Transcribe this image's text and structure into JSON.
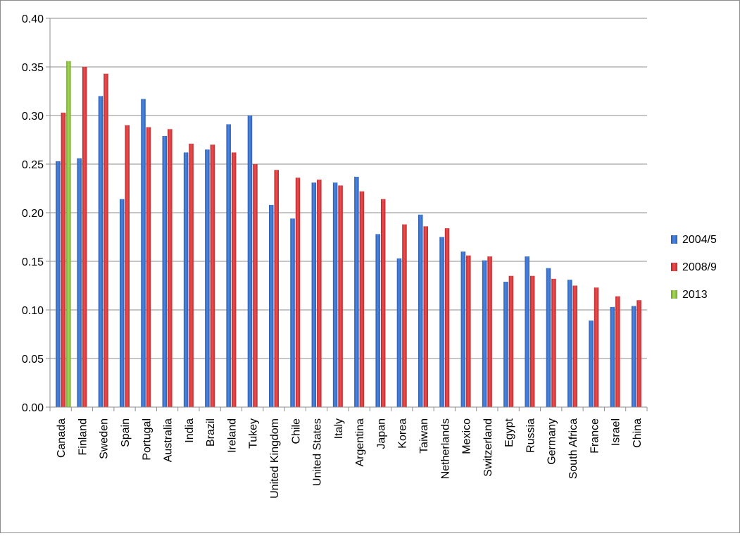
{
  "chart_data": {
    "type": "bar",
    "title": "",
    "xlabel": "",
    "ylabel": "",
    "ylim": [
      0,
      0.4
    ],
    "yticks": [
      "0.00",
      "0.05",
      "0.10",
      "0.15",
      "0.20",
      "0.25",
      "0.30",
      "0.35",
      "0.40"
    ],
    "grid": true,
    "legend_position": "right",
    "categories": [
      "Canada",
      "Finland",
      "Sweden",
      "Spain",
      "Portugal",
      "Australia",
      "India",
      "Brazil",
      "Ireland",
      "Tukey",
      "United Kingdom",
      "Chile",
      "United States",
      "Italy",
      "Argentina",
      "Japan",
      "Korea",
      "Taiwan",
      "Netherlands",
      "Mexico",
      "Switzerland",
      "Egypt",
      "Russia",
      "Germany",
      "South Africa",
      "France",
      "Israel",
      "China"
    ],
    "series": [
      {
        "name": "2004/5",
        "color": "#3a6fc7",
        "values": [
          0.253,
          0.256,
          0.32,
          0.214,
          0.317,
          0.279,
          0.262,
          0.265,
          0.291,
          0.3,
          0.208,
          0.194,
          0.231,
          0.231,
          0.237,
          0.178,
          0.153,
          0.198,
          0.175,
          0.16,
          0.151,
          0.129,
          0.155,
          0.143,
          0.131,
          0.089,
          0.103,
          0.104
        ]
      },
      {
        "name": "2008/9",
        "color": "#d6383c",
        "values": [
          0.303,
          0.35,
          0.343,
          0.29,
          0.288,
          0.286,
          0.271,
          0.27,
          0.262,
          0.25,
          0.244,
          0.236,
          0.234,
          0.228,
          0.222,
          0.214,
          0.188,
          0.186,
          0.184,
          0.156,
          0.155,
          0.135,
          0.135,
          0.132,
          0.125,
          0.123,
          0.114,
          0.11
        ]
      },
      {
        "name": "2013",
        "color": "#8dc63f",
        "values": [
          0.356,
          null,
          null,
          null,
          null,
          null,
          null,
          null,
          null,
          null,
          null,
          null,
          null,
          null,
          null,
          null,
          null,
          null,
          null,
          null,
          null,
          null,
          null,
          null,
          null,
          null,
          null,
          null
        ]
      }
    ]
  }
}
